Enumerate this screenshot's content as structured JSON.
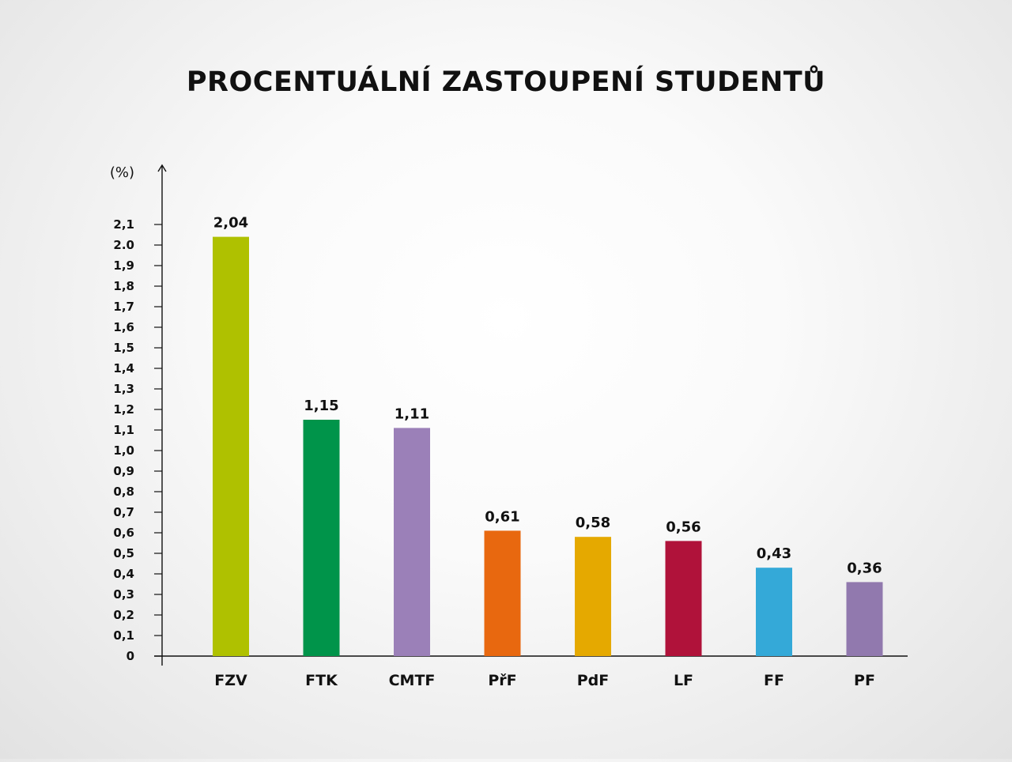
{
  "chart_data": {
    "type": "bar",
    "title": "PROCENTUÁLNÍ ZASTOUPENÍ STUDENTŮ",
    "ylabel": "(%)",
    "xlabel": "",
    "categories": [
      "FZV",
      "FTK",
      "CMTF",
      "PřF",
      "PdF",
      "LF",
      "FF",
      "PF"
    ],
    "values": [
      2.04,
      1.15,
      1.11,
      0.61,
      0.58,
      0.56,
      0.43,
      0.36
    ],
    "value_labels": [
      "2,04",
      "1,15",
      "1,11",
      "0,61",
      "0,58",
      "0,56",
      "0,43",
      "0,36"
    ],
    "bar_colors": [
      "#afc100",
      "#00944a",
      "#9b80b8",
      "#e8680f",
      "#e5a900",
      "#b0123a",
      "#34a9d8",
      "#9179ae"
    ],
    "yticks": [
      0,
      0.1,
      0.2,
      0.3,
      0.4,
      0.5,
      0.6,
      0.7,
      0.8,
      0.9,
      1.0,
      1.1,
      1.2,
      1.3,
      1.4,
      1.5,
      1.6,
      1.7,
      1.8,
      1.9,
      2.0,
      2.1
    ],
    "ytick_labels": [
      "0",
      "0,1",
      "0,2",
      "0,3",
      "0,4",
      "0,5",
      "0,6",
      "0,7",
      "0,8",
      "0,9",
      "1,0",
      "1,1",
      "1,2",
      "1,3",
      "1,4",
      "1,5",
      "1,6",
      "1,7",
      "1,8",
      "1,9",
      "2.0",
      "2,1"
    ],
    "ylim": [
      0,
      2.1
    ],
    "grid": false,
    "legend": "none"
  }
}
